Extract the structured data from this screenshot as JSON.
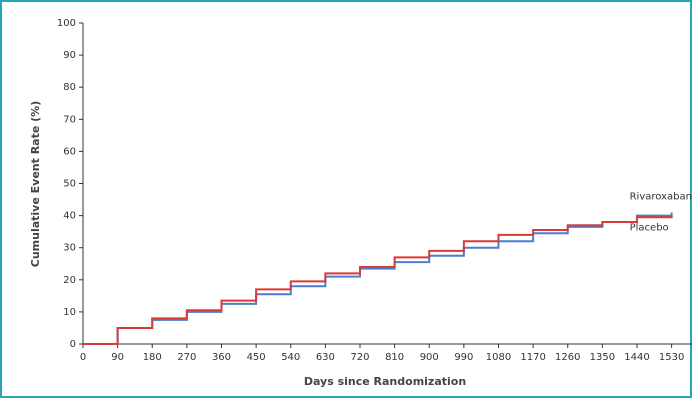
{
  "chart_data": {
    "type": "line",
    "x_label": "Days since Randomization",
    "y_label": "Cumulative Event Rate (%)",
    "x": [
      0,
      90,
      180,
      270,
      360,
      450,
      540,
      630,
      720,
      810,
      900,
      990,
      1080,
      1170,
      1260,
      1350,
      1440,
      1530
    ],
    "series": [
      {
        "name": "Rivaroxaban",
        "color": "#4a7fd0",
        "values": [
          0,
          5,
          7.5,
          10,
          12.5,
          15.5,
          18,
          21,
          23.5,
          25.5,
          27.5,
          30,
          32,
          34.5,
          36.5,
          38,
          40,
          41
        ]
      },
      {
        "name": "Placebo",
        "color": "#d93a3a",
        "values": [
          0,
          5,
          8,
          10.5,
          13.5,
          17,
          19.5,
          22,
          24,
          27,
          29,
          32,
          34,
          35.5,
          37,
          38,
          39.5,
          40
        ]
      }
    ],
    "xlim": [
      0,
      1583
    ],
    "ylim": [
      0,
      100
    ],
    "xticks": [
      0,
      90,
      180,
      270,
      360,
      450,
      540,
      630,
      720,
      810,
      900,
      990,
      1080,
      1170,
      1260,
      1350,
      1440,
      1530
    ],
    "yticks": [
      0,
      10,
      20,
      30,
      40,
      50,
      60,
      70,
      80,
      90,
      100
    ]
  }
}
